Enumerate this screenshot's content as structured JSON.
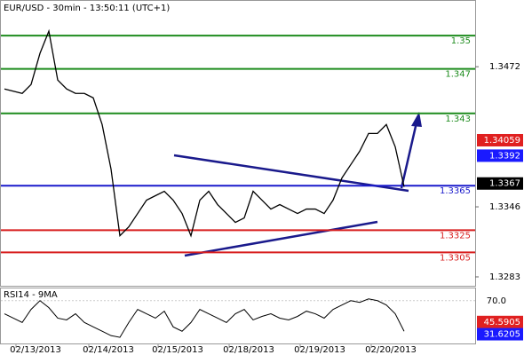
{
  "chart_data": {
    "type": "line",
    "title": "EUR/USD - 30min - 13:50:11 (UTC+1)",
    "x_labels": [
      "02/13/2013",
      "02/14/2013",
      "02/15/2013",
      "02/18/2013",
      "02/19/2013",
      "02/20/2013"
    ],
    "ylim": [
      1.3275,
      1.3532
    ],
    "yticks": [
      1.3472,
      1.3346,
      1.3283
    ],
    "series": [
      {
        "name": "EUR/USD",
        "color": "#000000",
        "values": [
          1.3452,
          1.345,
          1.3448,
          1.3456,
          1.3484,
          1.3504,
          1.346,
          1.3452,
          1.3448,
          1.3448,
          1.3444,
          1.342,
          1.338,
          1.332,
          1.3328,
          1.334,
          1.3352,
          1.3356,
          1.336,
          1.3352,
          1.334,
          1.332,
          1.3352,
          1.336,
          1.3348,
          1.334,
          1.3332,
          1.3336,
          1.336,
          1.3352,
          1.3344,
          1.3348,
          1.3344,
          1.334,
          1.3344,
          1.3344,
          1.334,
          1.3352,
          1.3372,
          1.3384,
          1.3396,
          1.3412,
          1.3412,
          1.342,
          1.34,
          1.3364
        ]
      }
    ],
    "levels": [
      {
        "value": 1.35,
        "color": "#1e8c1e"
      },
      {
        "value": 1.347,
        "color": "#1e8c1e"
      },
      {
        "value": 1.343,
        "color": "#1e8c1e"
      },
      {
        "value": 1.3365,
        "color": "#1a1acc"
      },
      {
        "value": 1.3325,
        "color": "#d81e1e"
      },
      {
        "value": 1.3305,
        "color": "#d81e1e"
      }
    ],
    "price_markers": [
      {
        "value": 1.34059,
        "color": "#e02020"
      },
      {
        "value": 1.3392,
        "color": "#1a1aff"
      },
      {
        "value": 1.3367,
        "color": "#000000"
      }
    ],
    "rsi": {
      "title": "RSI14 - 9MA",
      "ylim": [
        20,
        85
      ],
      "yticks": [
        {
          "value": 70,
          "label": "70.0"
        }
      ],
      "color": "#000000",
      "values": [
        55,
        50,
        45,
        60,
        70,
        62,
        50,
        48,
        55,
        45,
        40,
        35,
        30,
        28,
        45,
        60,
        55,
        50,
        58,
        40,
        35,
        45,
        60,
        55,
        50,
        45,
        55,
        60,
        48,
        52,
        55,
        50,
        48,
        52,
        58,
        55,
        50,
        60,
        65,
        70,
        68,
        72,
        70,
        65,
        55,
        35
      ],
      "markers": [
        {
          "value": 45.5905,
          "color": "#e02020"
        },
        {
          "value": 31.6205,
          "color": "#1a1aff"
        }
      ]
    }
  }
}
